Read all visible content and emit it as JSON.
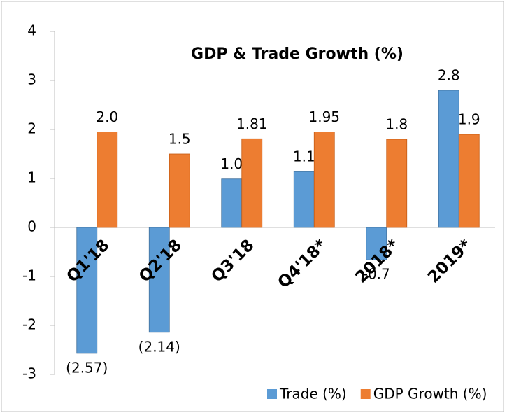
{
  "chart_data": {
    "type": "bar",
    "title": "GDP & Trade Growth (%)",
    "categories": [
      "Q1'18",
      "Q2'18",
      "Q3'18",
      "Q4'18*",
      "2018*",
      "2019*"
    ],
    "series": [
      {
        "name": "Trade (%)",
        "color": "#5b9bd5",
        "values": [
          -2.57,
          -2.14,
          0.99,
          1.14,
          -0.66,
          2.8
        ],
        "value_labels": [
          "(2.57)",
          "(2.14)",
          "1.0",
          "1.1",
          "-0.7",
          "2.8"
        ]
      },
      {
        "name": "GDP Growth (%)",
        "color": "#ed7d31",
        "values": [
          1.95,
          1.5,
          1.81,
          1.95,
          1.8,
          1.9
        ],
        "value_labels": [
          "2.0",
          "1.5",
          "1.81",
          "1.95",
          "1.8",
          "1.9"
        ]
      }
    ],
    "ylim": [
      -3,
      4
    ],
    "yticks": [
      -3,
      -2,
      -1,
      0,
      1,
      2,
      3,
      4
    ],
    "legend": "bottom"
  }
}
